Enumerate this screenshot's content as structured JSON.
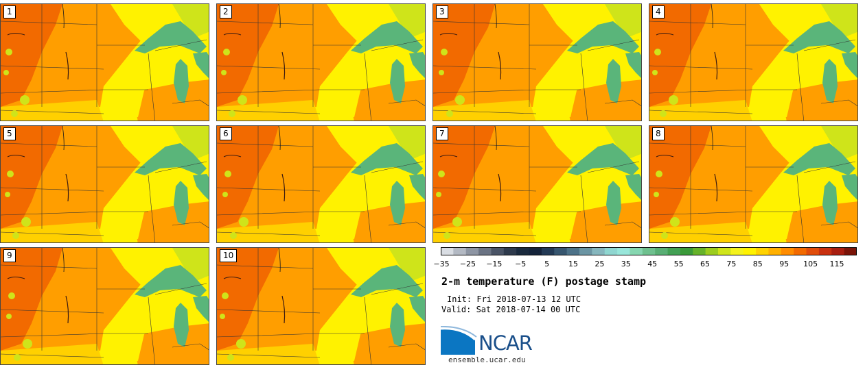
{
  "panels": [
    {
      "label": "1"
    },
    {
      "label": "2"
    },
    {
      "label": "3"
    },
    {
      "label": "4"
    },
    {
      "label": "5"
    },
    {
      "label": "6"
    },
    {
      "label": "7"
    },
    {
      "label": "8"
    },
    {
      "label": "9"
    },
    {
      "label": "10"
    }
  ],
  "colorbar": {
    "ticks": [
      "−35",
      "−25",
      "−15",
      "−5",
      "5",
      "15",
      "25",
      "35",
      "45",
      "55",
      "65",
      "75",
      "85",
      "95",
      "105",
      "115"
    ],
    "colors": [
      "#d9dde3",
      "#b3b9c3",
      "#8d95a3",
      "#6a7383",
      "#4a5466",
      "#2e3a4c",
      "#1a2a3d",
      "#14233a",
      "#233a55",
      "#37566f",
      "#4d7288",
      "#6b95a3",
      "#86b6bd",
      "#8fd6d0",
      "#98e6da",
      "#86d6b0",
      "#6ec08e",
      "#58ae74",
      "#42a054",
      "#3a9a3a",
      "#66b22a",
      "#9ccc1e",
      "#cfe41a",
      "#f4f21c",
      "#fff200",
      "#ffd200",
      "#ffb000",
      "#ff8c00",
      "#f26a00",
      "#e04c0a",
      "#c8300f",
      "#a81e10",
      "#7a1408"
    ]
  },
  "title": "2-m temperature (F) postage stamp",
  "init": "Init: Fri 2018-07-13 12 UTC",
  "valid": "Valid: Sat 2018-07-14 00 UTC",
  "logo": {
    "text": "NCAR",
    "site": "ensemble.ucar.edu",
    "color": "#1a4f8a"
  },
  "map_colors": {
    "hot": "#f26a00",
    "warm": "#ff9e00",
    "mild": "#ffd000",
    "cool": "#fff200",
    "cooler": "#cfe41a",
    "lake": "#5ab57a",
    "lake_dark": "#3e9a5a"
  }
}
